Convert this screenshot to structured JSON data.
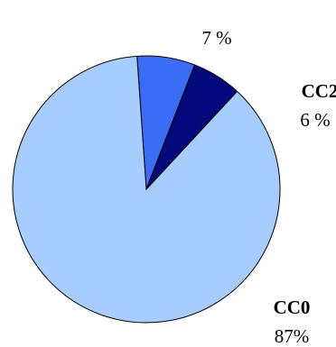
{
  "chart_data": {
    "type": "pie",
    "title": "",
    "slices": [
      {
        "label": "CC0",
        "value_label": "87%",
        "value": 87,
        "color": "#a6cdfd"
      },
      {
        "label": "",
        "value_label": "7 %",
        "value": 7,
        "color": "#3b6cf6"
      },
      {
        "label": "CC2",
        "value_label": "6 %",
        "value": 6,
        "color": "#04087d"
      }
    ],
    "start_angle_deg": -4,
    "legend": "none"
  }
}
